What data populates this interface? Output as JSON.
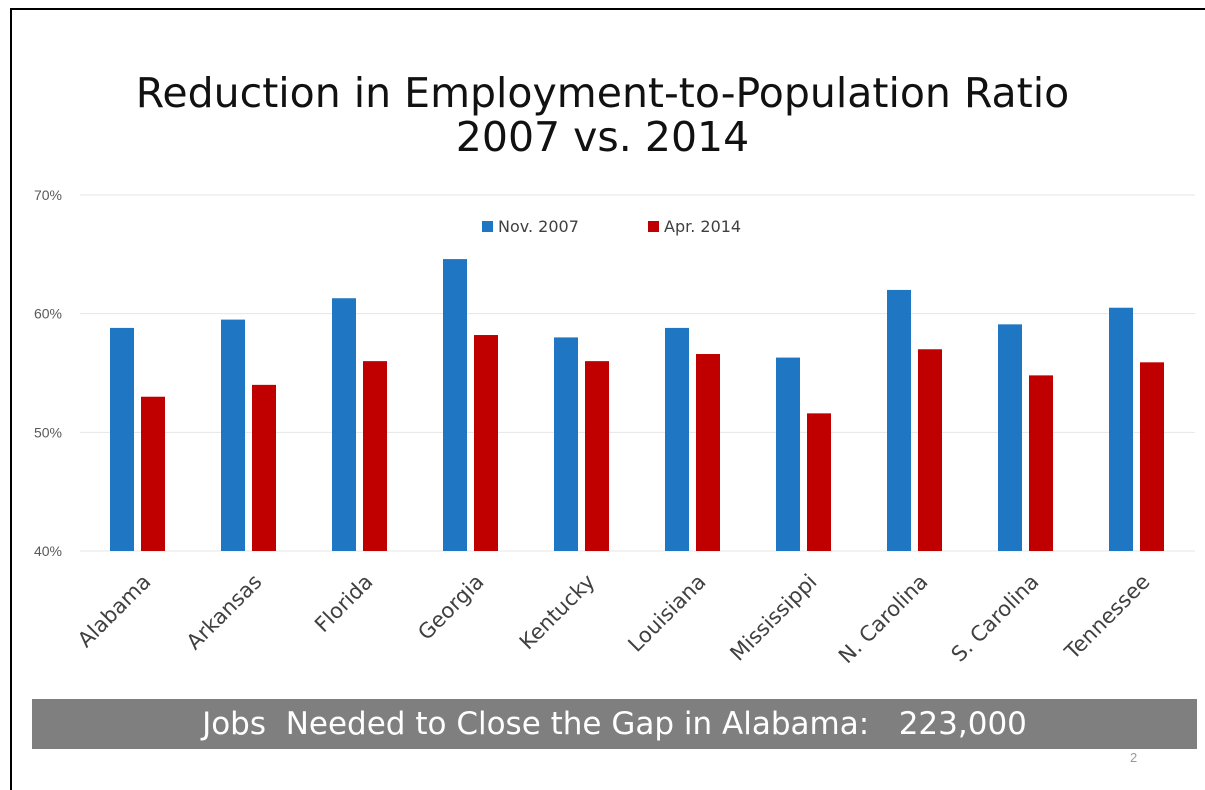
{
  "slide": {
    "title_line1": "Reduction in Employment-to-Population Ratio",
    "title_line2": "2007 vs. 2014",
    "banner_text": "Jobs  Needed to Close the Gap in Alabama:   223,000",
    "page_number": "2"
  },
  "chart_data": {
    "type": "bar",
    "title": "Reduction in Employment-to-Population Ratio 2007 vs. 2014",
    "categories": [
      "Alabama",
      "Arkansas",
      "Florida",
      "Georgia",
      "Kentucky",
      "Louisiana",
      "Mississippi",
      "N. Carolina",
      "S. Carolina",
      "Tennessee"
    ],
    "series": [
      {
        "name": "Nov. 2007",
        "color": "#1f77c4",
        "values": [
          58.8,
          59.5,
          61.3,
          64.6,
          58.0,
          58.8,
          56.3,
          62.0,
          59.1,
          60.5
        ]
      },
      {
        "name": "Apr. 2014",
        "color": "#c00000",
        "values": [
          53.0,
          54.0,
          56.0,
          58.2,
          56.0,
          56.6,
          51.6,
          57.0,
          54.8,
          55.9
        ]
      }
    ],
    "ylim": [
      40,
      70
    ],
    "yticks": [
      40,
      50,
      60,
      70
    ],
    "ytick_labels": [
      "40%",
      "50%",
      "60%",
      "70%"
    ],
    "xlabel": "",
    "ylabel": "",
    "grid": true,
    "legend_position": "top-center"
  }
}
